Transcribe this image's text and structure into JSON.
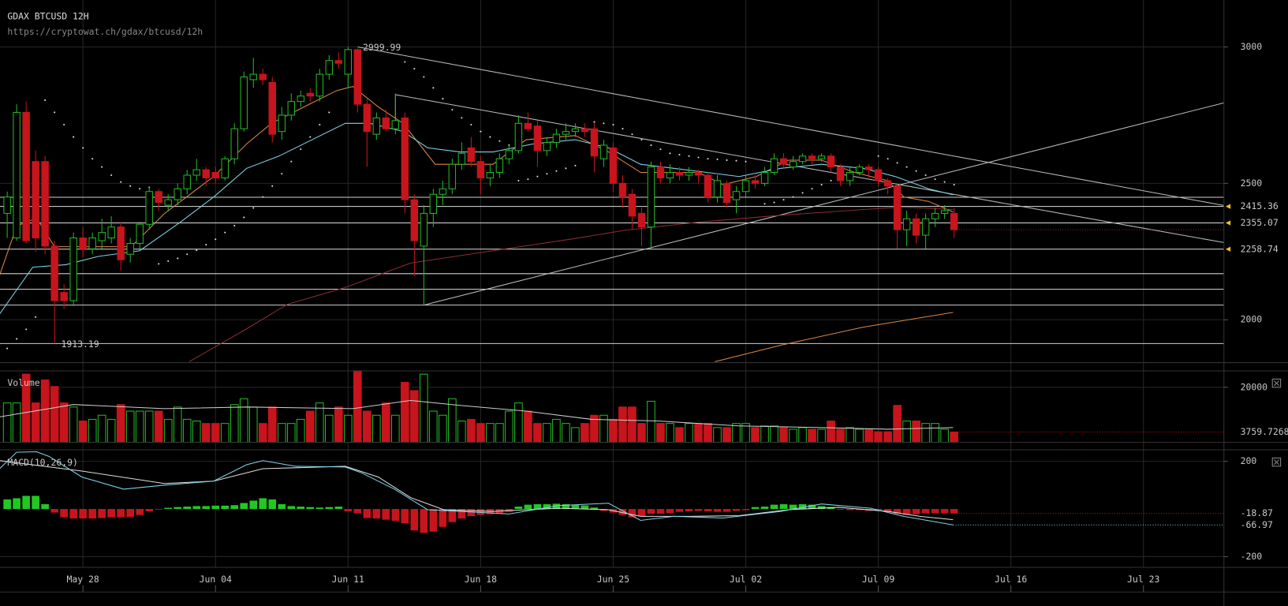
{
  "chart_data": [
    {
      "type": "candlestick",
      "title": "GDAX BTCUSD 12H",
      "subtitle": "https://cryptowat.ch/gdax/btcusd/12h",
      "up_color": "#22b822",
      "down_color": "#c8141c",
      "open": [
        2390,
        2300,
        2760,
        2580,
        2580,
        2270,
        2100,
        2070,
        2300,
        2260,
        2290,
        2300,
        2340,
        2240,
        2280,
        2350,
        2470,
        2420,
        2440,
        2480,
        2530,
        2550,
        2540,
        2520,
        2590,
        2700,
        2880,
        2900,
        2870,
        2690,
        2750,
        2800,
        2830,
        2820,
        2900,
        2950,
        2900,
        2990,
        2790,
        2680,
        2740,
        2700,
        2740,
        2440,
        2270,
        2390,
        2460,
        2480,
        2570,
        2630,
        2580,
        2520,
        2540,
        2590,
        2620,
        2720,
        2710,
        2620,
        2650,
        2680,
        2690,
        2700,
        2700,
        2590,
        2630,
        2500,
        2460,
        2390,
        2340,
        2560,
        2520,
        2540,
        2530,
        2540,
        2530,
        2450,
        2500,
        2440,
        2470,
        2510,
        2500,
        2540,
        2590,
        2560,
        2580,
        2600,
        2590,
        2600,
        2560,
        2510,
        2540,
        2560,
        2550,
        2510,
        2490,
        2330,
        2370,
        2310,
        2370,
        2390,
        2390
      ],
      "high": [
        2470,
        2790,
        2800,
        2620,
        2600,
        2290,
        2130,
        2320,
        2340,
        2320,
        2370,
        2380,
        2360,
        2300,
        2360,
        2490,
        2480,
        2460,
        2500,
        2550,
        2590,
        2560,
        2560,
        2600,
        2720,
        2910,
        2960,
        2920,
        2890,
        2780,
        2830,
        2840,
        2850,
        2920,
        2970,
        2980,
        2999.99,
        2995,
        2810,
        2760,
        2770,
        2830,
        2760,
        2460,
        2420,
        2480,
        2510,
        2590,
        2650,
        2670,
        2600,
        2570,
        2610,
        2640,
        2750,
        2760,
        2730,
        2670,
        2700,
        2720,
        2720,
        2720,
        2720,
        2660,
        2650,
        2530,
        2480,
        2410,
        2580,
        2580,
        2570,
        2560,
        2560,
        2550,
        2540,
        2530,
        2510,
        2490,
        2530,
        2530,
        2560,
        2610,
        2610,
        2600,
        2610,
        2610,
        2610,
        2610,
        2570,
        2560,
        2570,
        2570,
        2560,
        2520,
        2500,
        2400,
        2390,
        2390,
        2410,
        2420,
        2410
      ],
      "low": [
        2300,
        2290,
        2280,
        2250,
        2240,
        1913.19,
        2040,
        2050,
        2230,
        2240,
        2260,
        2280,
        2180,
        2210,
        2260,
        2330,
        2400,
        2400,
        2420,
        2460,
        2510,
        2490,
        2500,
        2510,
        2570,
        2690,
        2850,
        2860,
        2650,
        2660,
        2730,
        2780,
        2800,
        2800,
        2880,
        2920,
        2850,
        2760,
        2560,
        2660,
        2690,
        2680,
        2390,
        2160,
        2054,
        2340,
        2420,
        2460,
        2550,
        2560,
        2460,
        2490,
        2520,
        2570,
        2610,
        2690,
        2560,
        2600,
        2630,
        2660,
        2670,
        2670,
        2540,
        2560,
        2470,
        2410,
        2330,
        2270,
        2260,
        2500,
        2500,
        2510,
        2510,
        2500,
        2430,
        2430,
        2410,
        2390,
        2450,
        2480,
        2490,
        2530,
        2560,
        2550,
        2570,
        2570,
        2580,
        2540,
        2490,
        2490,
        2530,
        2520,
        2490,
        2460,
        2260,
        2270,
        2280,
        2260,
        2340,
        2370,
        2300
      ],
      "close": [
        2450,
        2760,
        2290,
        2300,
        2270,
        2070,
        2070,
        2300,
        2260,
        2300,
        2320,
        2340,
        2220,
        2280,
        2350,
        2470,
        2430,
        2440,
        2480,
        2530,
        2550,
        2520,
        2520,
        2590,
        2700,
        2890,
        2900,
        2880,
        2680,
        2750,
        2800,
        2820,
        2820,
        2900,
        2950,
        2940,
        2990,
        2790,
        2690,
        2740,
        2700,
        2730,
        2440,
        2290,
        2390,
        2460,
        2480,
        2570,
        2610,
        2580,
        2520,
        2540,
        2590,
        2620,
        2720,
        2700,
        2620,
        2650,
        2680,
        2690,
        2700,
        2690,
        2600,
        2640,
        2500,
        2450,
        2380,
        2340,
        2560,
        2520,
        2540,
        2530,
        2540,
        2530,
        2450,
        2510,
        2430,
        2470,
        2510,
        2500,
        2540,
        2590,
        2570,
        2580,
        2600,
        2590,
        2600,
        2560,
        2510,
        2540,
        2560,
        2550,
        2510,
        2490,
        2330,
        2370,
        2310,
        2370,
        2390,
        2400,
        2330
      ],
      "xlim": [
        -0.76,
        128.5
      ],
      "xticks": [
        {
          "value": 8,
          "label": "May 28"
        },
        {
          "value": 22,
          "label": "Jun 04"
        },
        {
          "value": 36,
          "label": "Jun 11"
        },
        {
          "value": 50,
          "label": "Jun 18"
        },
        {
          "value": 64,
          "label": "Jun 25"
        },
        {
          "value": 78,
          "label": "Jul 02"
        },
        {
          "value": 92,
          "label": "Jul 09"
        },
        {
          "value": 106,
          "label": "Jul 16"
        },
        {
          "value": 120,
          "label": "Jul 23"
        }
      ],
      "ylim": [
        1846,
        3172
      ],
      "yticks": [
        2000,
        2500,
        3000
      ],
      "grid": true,
      "price_lines": [
        2415.36,
        2355.07,
        2258.74
      ],
      "price_line_color": "#dddddd",
      "arrow_color": "#f5c518",
      "levels": [
        2449,
        2169,
        2112,
        2054,
        1913
      ],
      "overlays": [
        {
          "color": "#d9884a",
          "x": [
            -0.8,
            1.0,
            3.1,
            5.0,
            7.9,
            13.1,
            16.6,
            21.8,
            25.3,
            27.9,
            32.2,
            34.8,
            36.5,
            39.2,
            41.8,
            43.5,
            45.2,
            47.8,
            51.3,
            54.8,
            60.0,
            63.5,
            66.9,
            68.7,
            73.0,
            75.6,
            79.1,
            82.5,
            86.0,
            89.5,
            93.0,
            94.7,
            97.3,
            99.9
          ],
          "values": [
            2163,
            2343,
            2373,
            2268,
            2268,
            2268,
            2389,
            2525,
            2645,
            2720,
            2795,
            2840,
            2855,
            2780,
            2720,
            2645,
            2570,
            2570,
            2570,
            2660,
            2675,
            2615,
            2540,
            2540,
            2540,
            2495,
            2525,
            2585,
            2585,
            2540,
            2510,
            2450,
            2434,
            2395
          ]
        },
        {
          "color": "#7fd3e6",
          "x": [
            -0.8,
            2.7,
            6.2,
            9.6,
            14.0,
            18.3,
            21.8,
            25.3,
            28.7,
            32.2,
            35.7,
            38.3,
            41.8,
            44.4,
            47.8,
            51.3,
            55.6,
            60.0,
            63.5,
            66.9,
            70.4,
            73.9,
            77.3,
            81.7,
            86.0,
            90.4,
            93.8,
            97.3,
            99.9
          ],
          "values": [
            2021,
            2193,
            2202,
            2232,
            2253,
            2358,
            2450,
            2555,
            2600,
            2660,
            2720,
            2720,
            2690,
            2630,
            2615,
            2615,
            2645,
            2660,
            2630,
            2570,
            2555,
            2540,
            2525,
            2555,
            2570,
            2555,
            2525,
            2480,
            2458
          ]
        },
        {
          "color": "#8a2c34",
          "x": [
            19.2,
            25.3,
            29.6,
            35.7,
            42.6,
            51.3,
            60.0,
            65.2,
            73.0,
            81.7,
            90.4,
            94.7,
            99.9
          ],
          "values": [
            1846,
            1967,
            2057,
            2118,
            2208,
            2253,
            2298,
            2328,
            2358,
            2383,
            2404,
            2413,
            2404
          ]
        },
        {
          "color": "#d9884a",
          "x": [
            74.7,
            81.7,
            90.4,
            99.9
          ],
          "values": [
            1846,
            1907,
            1973,
            2027
          ]
        }
      ],
      "trendlines": [
        {
          "color": "#bbbbbb",
          "x": [
            37,
            128.5
          ],
          "values": [
            3000,
            2419
          ]
        },
        {
          "color": "#bbbbbb",
          "x": [
            41,
            41,
            128.5
          ],
          "values": [
            2700,
            2825,
            2283
          ]
        },
        {
          "color": "#bbbbbb",
          "x": [
            44,
            128.5
          ],
          "values": [
            2054,
            2795
          ]
        }
      ],
      "sar": {
        "color": "#dddddd",
        "x": [
          0,
          1,
          2,
          3,
          4,
          5,
          6,
          7,
          8,
          9,
          10,
          11,
          12,
          13,
          14,
          15,
          16,
          17,
          18,
          19,
          20,
          21,
          22,
          23,
          24,
          25,
          26,
          27,
          28,
          29,
          30,
          31,
          32,
          33,
          34,
          42,
          43,
          44,
          45,
          46,
          47,
          48,
          49,
          50,
          51,
          52,
          53,
          54,
          55,
          56,
          57,
          58,
          59,
          60,
          62,
          63,
          64,
          65,
          66,
          67,
          68,
          69,
          70,
          71,
          72,
          73,
          74,
          75,
          76,
          77,
          78,
          80,
          81,
          82,
          83,
          84,
          85,
          86,
          87,
          92,
          93,
          94,
          95,
          96,
          97,
          98,
          99,
          100
        ],
        "values": [
          1895,
          1930,
          1965,
          2010,
          2805,
          2760,
          2715,
          2670,
          2630,
          2590,
          2560,
          2530,
          2505,
          2490,
          2480,
          2485,
          2205,
          2215,
          2225,
          2240,
          2255,
          2275,
          2295,
          2320,
          2345,
          2375,
          2410,
          2450,
          2490,
          2535,
          2580,
          2625,
          2670,
          2715,
          2760,
          2945,
          2920,
          2890,
          2850,
          2810,
          2770,
          2740,
          2715,
          2690,
          2670,
          2655,
          2640,
          2510,
          2515,
          2525,
          2535,
          2545,
          2555,
          2565,
          2725,
          2720,
          2715,
          2700,
          2680,
          2660,
          2640,
          2625,
          2610,
          2605,
          2600,
          2595,
          2590,
          2588,
          2585,
          2583,
          2580,
          2425,
          2430,
          2440,
          2450,
          2465,
          2480,
          2495,
          2510,
          2600,
          2590,
          2575,
          2560,
          2545,
          2530,
          2515,
          2505,
          2495
        ]
      }
    },
    {
      "type": "bar",
      "title": "Volume",
      "values": [
        14330,
        14330,
        24775,
        14330,
        22690,
        20300,
        14330,
        12835,
        7760,
        8360,
        9850,
        8360,
        13730,
        11340,
        11340,
        11340,
        11340,
        8360,
        12835,
        8360,
        7760,
        6865,
        6865,
        6865,
        13730,
        15820,
        12835,
        6865,
        12835,
        6865,
        6865,
        8360,
        11340,
        14330,
        9850,
        12835,
        9850,
        26000,
        11340,
        9850,
        14330,
        9850,
        21790,
        18805,
        24775,
        11340,
        9850,
        15820,
        7760,
        8360,
        6865,
        6865,
        6865,
        11340,
        14330,
        11340,
        6865,
        6865,
        8360,
        6865,
        5375,
        6865,
        9850,
        9850,
        8360,
        12835,
        12835,
        6865,
        14925,
        6865,
        6865,
        5375,
        6865,
        6865,
        6865,
        5375,
        5375,
        6865,
        6865,
        5375,
        5970,
        5970,
        5375,
        4775,
        5375,
        4775,
        4775,
        7760,
        4775,
        5375,
        4775,
        4775,
        3880,
        3880,
        13430,
        7760,
        7760,
        6865,
        6865,
        4775,
        3759.7268
      ],
      "average": {
        "color": "#cccccc",
        "x": [
          -0.8,
          7.0,
          16.6,
          25.3,
          36.5,
          42.6,
          47.8,
          54.8,
          61.7,
          68.7,
          77.3,
          86.0,
          93.0,
          99.9
        ],
        "values": [
          9250,
          13730,
          12240,
          12835,
          12240,
          15220,
          13430,
          11340,
          8360,
          7760,
          5970,
          5375,
          4775,
          5375
        ]
      },
      "last_color": "#c8141c",
      "ylim": [
        0,
        26270
      ],
      "yticks": [
        20000
      ]
    },
    {
      "type": "macd",
      "title": "MACD(10,26,9)",
      "histogram": [
        40,
        45,
        55,
        55,
        20,
        -15,
        -35,
        -40,
        -40,
        -40,
        -38,
        -35,
        -35,
        -33,
        -25,
        -10,
        0,
        5,
        8,
        10,
        12,
        12,
        14,
        14,
        16,
        25,
        35,
        45,
        40,
        20,
        12,
        10,
        8,
        6,
        8,
        10,
        -10,
        -18,
        -38,
        -40,
        -45,
        -50,
        -60,
        -90,
        -100,
        -95,
        -75,
        -55,
        -40,
        -30,
        -25,
        -22,
        -18,
        -12,
        10,
        18,
        20,
        20,
        22,
        20,
        18,
        15,
        6,
        -8,
        -15,
        -25,
        -35,
        -30,
        -20,
        -20,
        -18,
        -12,
        -10,
        -8,
        -10,
        -12,
        -12,
        -8,
        -5,
        8,
        10,
        18,
        20,
        18,
        20,
        18,
        12,
        8,
        0,
        -5,
        -5,
        -8,
        -8,
        -12,
        -20,
        -25,
        -22,
        -18,
        -18,
        -18,
        -18.87
      ],
      "up_color": "#22c822",
      "down_color": "#c8141c",
      "macd": {
        "color": "#7fd3e6",
        "x": [
          -0.8,
          1.0,
          3.1,
          4.4,
          7.9,
          12.3,
          16.6,
          21.8,
          25.3,
          27.0,
          30.5,
          35.7,
          37.4,
          40.9,
          44.4,
          47.8,
          53.0,
          58.2,
          63.5,
          66.9,
          70.4,
          75.6,
          81.7,
          86.0,
          91.2,
          94.7,
          99.9
        ],
        "values": [
          169,
          238,
          240,
          221,
          134,
          83,
          100,
          117,
          186,
          203,
          179,
          176,
          152,
          83,
          -3,
          -10,
          -21,
          14,
          24,
          -48,
          -31,
          -38,
          -10,
          21,
          3,
          -31,
          -66.97
        ]
      },
      "signal": {
        "color": "#dddddd",
        "x": [
          -0.8,
          7.9,
          16.6,
          21.8,
          27.0,
          35.7,
          39.2,
          42.6,
          46.1,
          51.3,
          58.2,
          63.5,
          66.9,
          72.1,
          77.3,
          82.5,
          87.8,
          93.0,
          96.4,
          99.9
        ],
        "values": [
          203,
          159,
          107,
          117,
          169,
          179,
          134,
          48,
          -3,
          -10,
          3,
          -3,
          -31,
          -31,
          -28,
          -3,
          7,
          -10,
          -31,
          -45
        ]
      },
      "ylim": [
        -245,
        245
      ],
      "yticks": [
        200,
        -200
      ]
    }
  ]
}
